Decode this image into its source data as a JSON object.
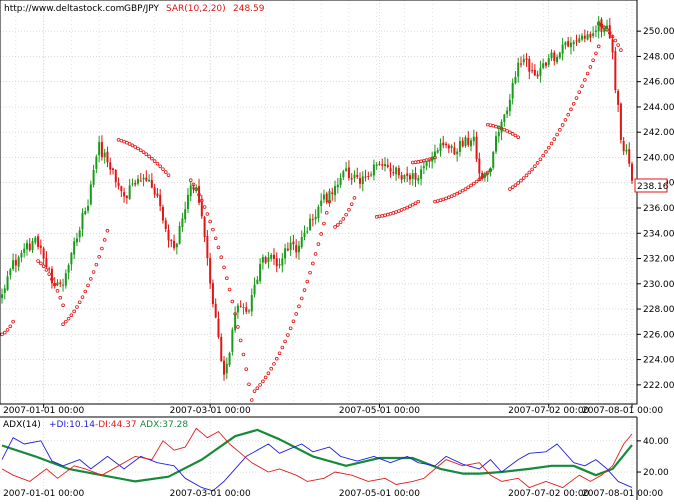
{
  "header": {
    "site": "http://www.deltastock.com",
    "symbol": "GBP/JPY",
    "sar_label": "SAR(10,2,20)",
    "sar_value": "248.59"
  },
  "colors": {
    "background": "#ffffff",
    "grid": "#c8c8c8",
    "bull_candle": "#1a9a1a",
    "bear_candle": "#e01515",
    "sar_dots": "#e01515",
    "last_price_box": "#e01515",
    "adx_line": "#178a3a",
    "plus_di_line": "#2020e0",
    "minus_di_line": "#e02020",
    "frame": "#000000"
  },
  "chart_data": [
    {
      "type": "candlestick",
      "symbol": "GBP/JPY",
      "indicator": "SAR(10,2,20)",
      "indicator_value": 248.59,
      "last_price": "238.16",
      "ylim": [
        220.8,
        251.2
      ],
      "y_ticks": [
        222.0,
        224.0,
        226.0,
        228.0,
        230.0,
        232.0,
        234.0,
        236.0,
        238.0,
        240.0,
        242.0,
        244.0,
        246.0,
        248.0,
        250.0
      ],
      "y_tick_labels": [
        "222.00",
        "224.00",
        "226.00",
        "228.00",
        "230.00",
        "232.00",
        "234.00",
        "236.00",
        "238.00",
        "240.00",
        "242.00",
        "244.00",
        "246.00",
        "248.00",
        "250.00"
      ],
      "x_tick_labels": [
        "2007-01-01 00:00",
        "2007-03-01 00:00",
        "2007-05-01 00:00",
        "2007-07-02 00:00",
        "2007-08-01 00:00"
      ],
      "x_tick_bar_index": [
        15,
        75,
        136,
        197,
        227
      ],
      "bars": 228,
      "grid": true,
      "close_path": [
        [
          0,
          229.6
        ],
        [
          4,
          231.5
        ],
        [
          9,
          233.0
        ],
        [
          13,
          233.3
        ],
        [
          16,
          231.4
        ],
        [
          19,
          229.5
        ],
        [
          22,
          230.0
        ],
        [
          25,
          232.5
        ],
        [
          28,
          234.6
        ],
        [
          31,
          236.6
        ],
        [
          33,
          239.2
        ],
        [
          35,
          240.8
        ],
        [
          38,
          239.8
        ],
        [
          41,
          238.0
        ],
        [
          44,
          236.8
        ],
        [
          47,
          237.7
        ],
        [
          50,
          238.3
        ],
        [
          53,
          238.0
        ],
        [
          56,
          237.0
        ],
        [
          59,
          234.0
        ],
        [
          62,
          232.6
        ],
        [
          65,
          235.3
        ],
        [
          68,
          237.5
        ],
        [
          70,
          238.0
        ],
        [
          72,
          235.0
        ],
        [
          74,
          232.0
        ],
        [
          76,
          228.5
        ],
        [
          78,
          225.5
        ],
        [
          80,
          222.5
        ],
        [
          82,
          224.5
        ],
        [
          84,
          227.5
        ],
        [
          86,
          228.3
        ],
        [
          88,
          227.5
        ],
        [
          90,
          229.0
        ],
        [
          93,
          231.5
        ],
        [
          96,
          232.3
        ],
        [
          99,
          231.5
        ],
        [
          101,
          232.2
        ],
        [
          104,
          233.0
        ],
        [
          107,
          232.8
        ],
        [
          109,
          234.0
        ],
        [
          112,
          235.2
        ],
        [
          115,
          236.3
        ],
        [
          118,
          237.2
        ],
        [
          121,
          238.2
        ],
        [
          124,
          238.7
        ],
        [
          128,
          238.1
        ],
        [
          131,
          238.4
        ],
        [
          135,
          239.2
        ],
        [
          138,
          239.5
        ],
        [
          140,
          239.0
        ],
        [
          144,
          238.6
        ],
        [
          147,
          238.3
        ],
        [
          150,
          238.7
        ],
        [
          153,
          239.5
        ],
        [
          156,
          240.4
        ],
        [
          159,
          241.3
        ],
        [
          163,
          240.7
        ],
        [
          166,
          241.1
        ],
        [
          170,
          241.6
        ],
        [
          172,
          239.0
        ],
        [
          174,
          238.4
        ],
        [
          176,
          239.6
        ],
        [
          178,
          241.6
        ],
        [
          181,
          243.2
        ],
        [
          184,
          245.8
        ],
        [
          186,
          247.6
        ],
        [
          188,
          248.0
        ],
        [
          190,
          247.0
        ],
        [
          193,
          246.5
        ],
        [
          196,
          247.6
        ],
        [
          199,
          248.0
        ],
        [
          202,
          248.6
        ],
        [
          205,
          249.0
        ],
        [
          208,
          249.7
        ],
        [
          210,
          249.2
        ],
        [
          213,
          249.9
        ],
        [
          215,
          250.4
        ],
        [
          218,
          250.0
        ],
        [
          220,
          248.5
        ],
        [
          221,
          245.5
        ],
        [
          222,
          244.0
        ],
        [
          223,
          241.5
        ],
        [
          224,
          240.2
        ],
        [
          225,
          240.6
        ],
        [
          226,
          239.2
        ],
        [
          227,
          238.16
        ]
      ],
      "sar_segments": [
        {
          "from": 0,
          "to": 4,
          "start": 226.0,
          "end": 227.0
        },
        {
          "from": 13,
          "to": 22,
          "start": 231.8,
          "end": 228.3
        },
        {
          "from": 22,
          "to": 38,
          "start": 226.8,
          "end": 234.2
        },
        {
          "from": 42,
          "to": 60,
          "start": 241.4,
          "end": 238.6
        },
        {
          "from": 68,
          "to": 90,
          "start": 238.2,
          "end": 220.8
        },
        {
          "from": 91,
          "to": 118,
          "start": 221.5,
          "end": 236.5
        },
        {
          "from": 120,
          "to": 127,
          "start": 234.5,
          "end": 236.8
        },
        {
          "from": 135,
          "to": 150,
          "start": 235.3,
          "end": 236.5
        },
        {
          "from": 148,
          "to": 156,
          "start": 239.6,
          "end": 240.0
        },
        {
          "from": 156,
          "to": 176,
          "start": 236.5,
          "end": 239.0
        },
        {
          "from": 175,
          "to": 186,
          "start": 242.6,
          "end": 241.6
        },
        {
          "from": 183,
          "to": 215,
          "start": 237.5,
          "end": 248.8
        },
        {
          "from": 215,
          "to": 223,
          "start": 250.6,
          "end": 248.5
        }
      ]
    },
    {
      "type": "line",
      "indicator": "ADX(14)",
      "legend": [
        "ADX(14)",
        "+DI:10.14",
        "-DI:44.37",
        "ADX:37.28"
      ],
      "ylim": [
        4,
        54
      ],
      "y_ticks": [
        20.0,
        40.0
      ],
      "y_tick_labels": [
        "20.00",
        "40.00"
      ],
      "x_tick_labels": [
        "2007-01-01 00:00",
        "2007-03-01 00:00",
        "2007-05-01 00:00",
        "2007-07-02 00:00",
        "2007-08-01 00:00"
      ],
      "x_tick_bar_index": [
        15,
        75,
        136,
        197,
        227
      ],
      "series": [
        {
          "name": "ADX",
          "color": "#178a3a",
          "points": [
            [
              0,
              37
            ],
            [
              12,
              30
            ],
            [
              24,
              22
            ],
            [
              36,
              18
            ],
            [
              48,
              14
            ],
            [
              60,
              17
            ],
            [
              72,
              28
            ],
            [
              84,
              43
            ],
            [
              92,
              47
            ],
            [
              100,
              41
            ],
            [
              112,
              30
            ],
            [
              124,
              24
            ],
            [
              136,
              29
            ],
            [
              148,
              29
            ],
            [
              158,
              22
            ],
            [
              166,
              19
            ],
            [
              172,
              19
            ],
            [
              180,
              20
            ],
            [
              190,
              22
            ],
            [
              198,
              24
            ],
            [
              206,
              24
            ],
            [
              214,
              18
            ],
            [
              220,
              22
            ],
            [
              227,
              37.28
            ]
          ]
        },
        {
          "name": "+DI",
          "color": "#2020e0",
          "points": [
            [
              0,
              28
            ],
            [
              4,
              42
            ],
            [
              8,
              38
            ],
            [
              14,
              40
            ],
            [
              18,
              27
            ],
            [
              22,
              24
            ],
            [
              28,
              28
            ],
            [
              32,
              22
            ],
            [
              38,
              30
            ],
            [
              44,
              22
            ],
            [
              50,
              30
            ],
            [
              56,
              26
            ],
            [
              62,
              24
            ],
            [
              66,
              16
            ],
            [
              72,
              10
            ],
            [
              76,
              8
            ],
            [
              80,
              14
            ],
            [
              84,
              22
            ],
            [
              88,
              30
            ],
            [
              92,
              34
            ],
            [
              96,
              38
            ],
            [
              100,
              32
            ],
            [
              104,
              35
            ],
            [
              108,
              38
            ],
            [
              112,
              33
            ],
            [
              118,
              36
            ],
            [
              122,
              30
            ],
            [
              128,
              27
            ],
            [
              134,
              30
            ],
            [
              140,
              26
            ],
            [
              146,
              30
            ],
            [
              150,
              26
            ],
            [
              156,
              24
            ],
            [
              160,
              30
            ],
            [
              166,
              25
            ],
            [
              172,
              22
            ],
            [
              176,
              28
            ],
            [
              180,
              20
            ],
            [
              186,
              28
            ],
            [
              190,
              32
            ],
            [
              196,
              33
            ],
            [
              200,
              38
            ],
            [
              206,
              26
            ],
            [
              210,
              24
            ],
            [
              214,
              28
            ],
            [
              218,
              22
            ],
            [
              222,
              14
            ],
            [
              227,
              10.14
            ]
          ]
        },
        {
          "name": "-DI",
          "color": "#e02020",
          "points": [
            [
              0,
              22
            ],
            [
              4,
              18
            ],
            [
              10,
              14
            ],
            [
              16,
              22
            ],
            [
              20,
              16
            ],
            [
              26,
              24
            ],
            [
              30,
              22
            ],
            [
              36,
              18
            ],
            [
              42,
              24
            ],
            [
              48,
              30
            ],
            [
              54,
              28
            ],
            [
              58,
              40
            ],
            [
              62,
              34
            ],
            [
              66,
              36
            ],
            [
              70,
              48
            ],
            [
              74,
              42
            ],
            [
              78,
              46
            ],
            [
              82,
              38
            ],
            [
              86,
              32
            ],
            [
              90,
              26
            ],
            [
              96,
              20
            ],
            [
              100,
              22
            ],
            [
              106,
              18
            ],
            [
              110,
              14
            ],
            [
              116,
              16
            ],
            [
              120,
              20
            ],
            [
              126,
              18
            ],
            [
              132,
              14
            ],
            [
              138,
              16
            ],
            [
              142,
              12
            ],
            [
              148,
              14
            ],
            [
              152,
              16
            ],
            [
              156,
              22
            ],
            [
              160,
              28
            ],
            [
              166,
              24
            ],
            [
              172,
              26
            ],
            [
              176,
              18
            ],
            [
              180,
              14
            ],
            [
              186,
              16
            ],
            [
              190,
              10
            ],
            [
              196,
              14
            ],
            [
              202,
              10
            ],
            [
              208,
              18
            ],
            [
              212,
              14
            ],
            [
              216,
              18
            ],
            [
              220,
              24
            ],
            [
              224,
              38
            ],
            [
              227,
              44.37
            ]
          ]
        }
      ]
    }
  ]
}
